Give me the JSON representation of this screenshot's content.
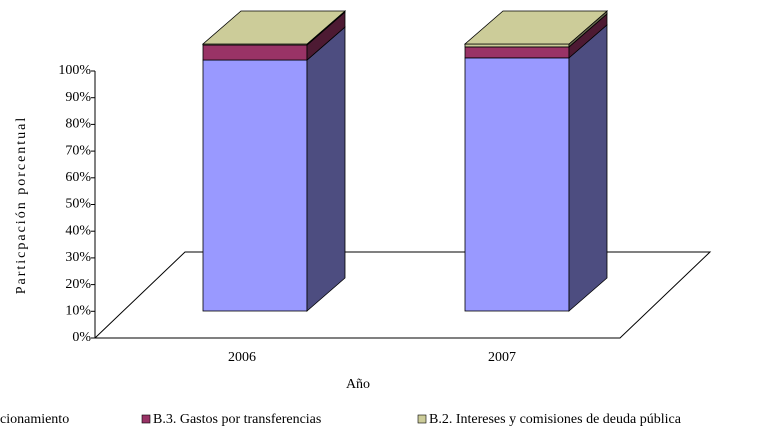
{
  "chart_data": {
    "type": "bar",
    "stacked": true,
    "three_d": true,
    "y_label": "Particpación porcentual",
    "x_label": "Año",
    "categories": [
      "2006",
      "2007"
    ],
    "series": [
      {
        "name": "cionamiento",
        "color": "#9999ff",
        "values": [
          94.0,
          94.8
        ]
      },
      {
        "name": "B.3. Gastos por transferencias",
        "color": "#993366",
        "values": [
          5.6,
          4.1
        ]
      },
      {
        "name": "B.2. Intereses y  comisiones de deuda pública",
        "color": "#cccc99",
        "values": [
          0.4,
          1.1
        ]
      }
    ],
    "ylim": [
      0,
      100
    ],
    "yticks": [
      {
        "value": 0,
        "label": "0%"
      },
      {
        "value": 10,
        "label": "10%"
      },
      {
        "value": 20,
        "label": "20%"
      },
      {
        "value": 30,
        "label": "30%"
      },
      {
        "value": 40,
        "label": "40%"
      },
      {
        "value": 50,
        "label": "50%"
      },
      {
        "value": 60,
        "label": "60%"
      },
      {
        "value": 70,
        "label": "70%"
      },
      {
        "value": 80,
        "label": "80%"
      },
      {
        "value": 90,
        "label": "90%"
      },
      {
        "value": 100,
        "label": "100%"
      }
    ]
  }
}
